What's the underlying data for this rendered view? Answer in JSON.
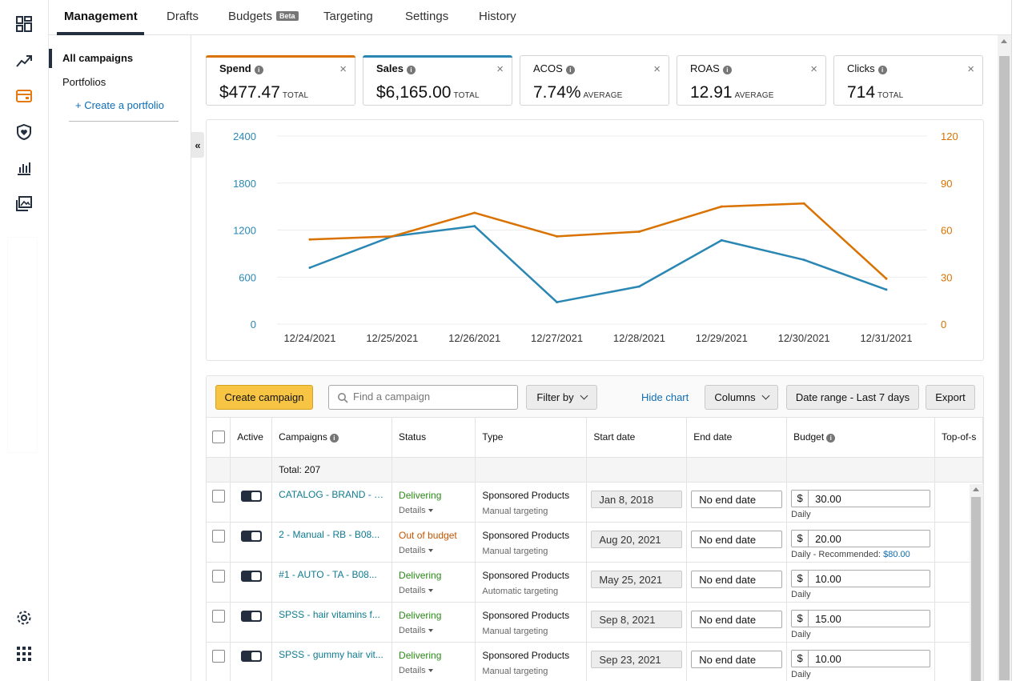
{
  "nav": {
    "tabs": [
      {
        "label": "Management"
      },
      {
        "label": "Drafts"
      },
      {
        "label": "Budgets",
        "badge": "Beta"
      },
      {
        "label": "Targeting"
      },
      {
        "label": "Settings"
      },
      {
        "label": "History"
      }
    ]
  },
  "sidebar": {
    "items": [
      "All campaigns",
      "Portfolios"
    ],
    "create_portfolio": "+ Create a portfolio",
    "collapse_glyph": "«"
  },
  "rail_icons": [
    "dashboard-icon",
    "trend-icon",
    "campaign-icon",
    "shield-icon",
    "reports-icon",
    "media-icon",
    "settings-gear-icon",
    "apps-grid-icon"
  ],
  "colors": {
    "spend": "#d97200",
    "sales": "#2a87b3",
    "accent": "#232f3e",
    "primary_button": "#f7c543"
  },
  "metrics": [
    {
      "label": "Spend",
      "value": "$477.47",
      "unit": "TOTAL"
    },
    {
      "label": "Sales",
      "value": "$6,165.00",
      "unit": "TOTAL"
    },
    {
      "label": "ACOS",
      "value": "7.74%",
      "unit": "AVERAGE"
    },
    {
      "label": "ROAS",
      "value": "12.91",
      "unit": "AVERAGE"
    },
    {
      "label": "Clicks",
      "value": "714",
      "unit": "TOTAL"
    }
  ],
  "chart_data": {
    "type": "line",
    "x": [
      "12/24/2021",
      "12/25/2021",
      "12/26/2021",
      "12/27/2021",
      "12/28/2021",
      "12/29/2021",
      "12/30/2021",
      "12/31/2021"
    ],
    "series": [
      {
        "name": "Sales",
        "axis": "left",
        "color": "#2a87b3",
        "values": [
          720,
          1120,
          1250,
          280,
          480,
          1070,
          820,
          440
        ]
      },
      {
        "name": "Spend",
        "axis": "right",
        "color": "#d97200",
        "values": [
          54,
          56,
          71,
          56,
          59,
          75,
          77,
          29
        ]
      }
    ],
    "y_left": {
      "ticks": [
        "2400",
        "1800",
        "1200",
        "600",
        "0"
      ],
      "range": [
        0,
        2400
      ]
    },
    "y_right": {
      "ticks": [
        "120",
        "90",
        "60",
        "30",
        "0"
      ],
      "range": [
        0,
        120
      ]
    },
    "grid": true
  },
  "toolbar": {
    "create": "Create campaign",
    "search_placeholder": "Find a campaign",
    "filter": "Filter by",
    "hide_chart": "Hide chart",
    "columns": "Columns",
    "date_range": "Date range - Last 7 days",
    "export": "Export"
  },
  "table": {
    "headers": [
      "Active",
      "Campaigns",
      "Status",
      "Type",
      "Start date",
      "End date",
      "Budget",
      "Top-of-s"
    ],
    "total": "Total: 207",
    "rows": [
      {
        "name": "CATALOG - BRAND - B...",
        "status": "Delivering",
        "details": "Details",
        "type": "Sponsored Products",
        "targeting": "Manual targeting",
        "start": "Jan 8, 2018",
        "end": "No end date",
        "currency": "$",
        "budget": "30.00",
        "budget_note": "Daily"
      },
      {
        "name": "2 - Manual - RB - B08...",
        "status": "Out of budget",
        "details": "Details",
        "type": "Sponsored Products",
        "targeting": "Manual targeting",
        "start": "Aug 20, 2021",
        "end": "No end date",
        "currency": "$",
        "budget": "20.00",
        "budget_note": "Daily - Recommended:",
        "recommended": "$80.00"
      },
      {
        "name": "#1 - AUTO - TA - B08...",
        "status": "Delivering",
        "details": "Details",
        "type": "Sponsored Products",
        "targeting": "Automatic targeting",
        "start": "May 25, 2021",
        "end": "No end date",
        "currency": "$",
        "budget": "10.00",
        "budget_note": "Daily"
      },
      {
        "name": "SPSS - hair vitamins f...",
        "status": "Delivering",
        "details": "Details",
        "type": "Sponsored Products",
        "targeting": "Manual targeting",
        "start": "Sep 8, 2021",
        "end": "No end date",
        "currency": "$",
        "budget": "15.00",
        "budget_note": "Daily"
      },
      {
        "name": "SPSS - gummy hair vit...",
        "status": "Delivering",
        "details": "Details",
        "type": "Sponsored Products",
        "targeting": "Manual targeting",
        "start": "Sep 23, 2021",
        "end": "No end date",
        "currency": "$",
        "budget": "10.00",
        "budget_note": "Daily"
      }
    ]
  }
}
